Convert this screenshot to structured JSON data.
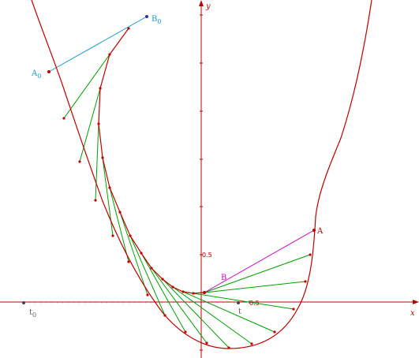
{
  "axes": {
    "x_letter": "x",
    "y_letter": "y",
    "x_tick_label": "0.5",
    "y_tick_label": "0.5",
    "color": "#c00000"
  },
  "labels": {
    "A": "A",
    "B": "B",
    "A0_main": "A",
    "A0_sub": "0",
    "B0_main": "B",
    "B0_sub": "0",
    "t": "t",
    "t0_main": "t",
    "t0_sub": "0"
  },
  "colors": {
    "curve": "#c00000",
    "chords": "#00a000",
    "initial_chord": "#1a9bcf",
    "current_chord": "#d000c0",
    "label_A": "#c00000",
    "label_B": "#d000c0",
    "label_0": "#1a9bcf",
    "slider": "#666666"
  }
}
